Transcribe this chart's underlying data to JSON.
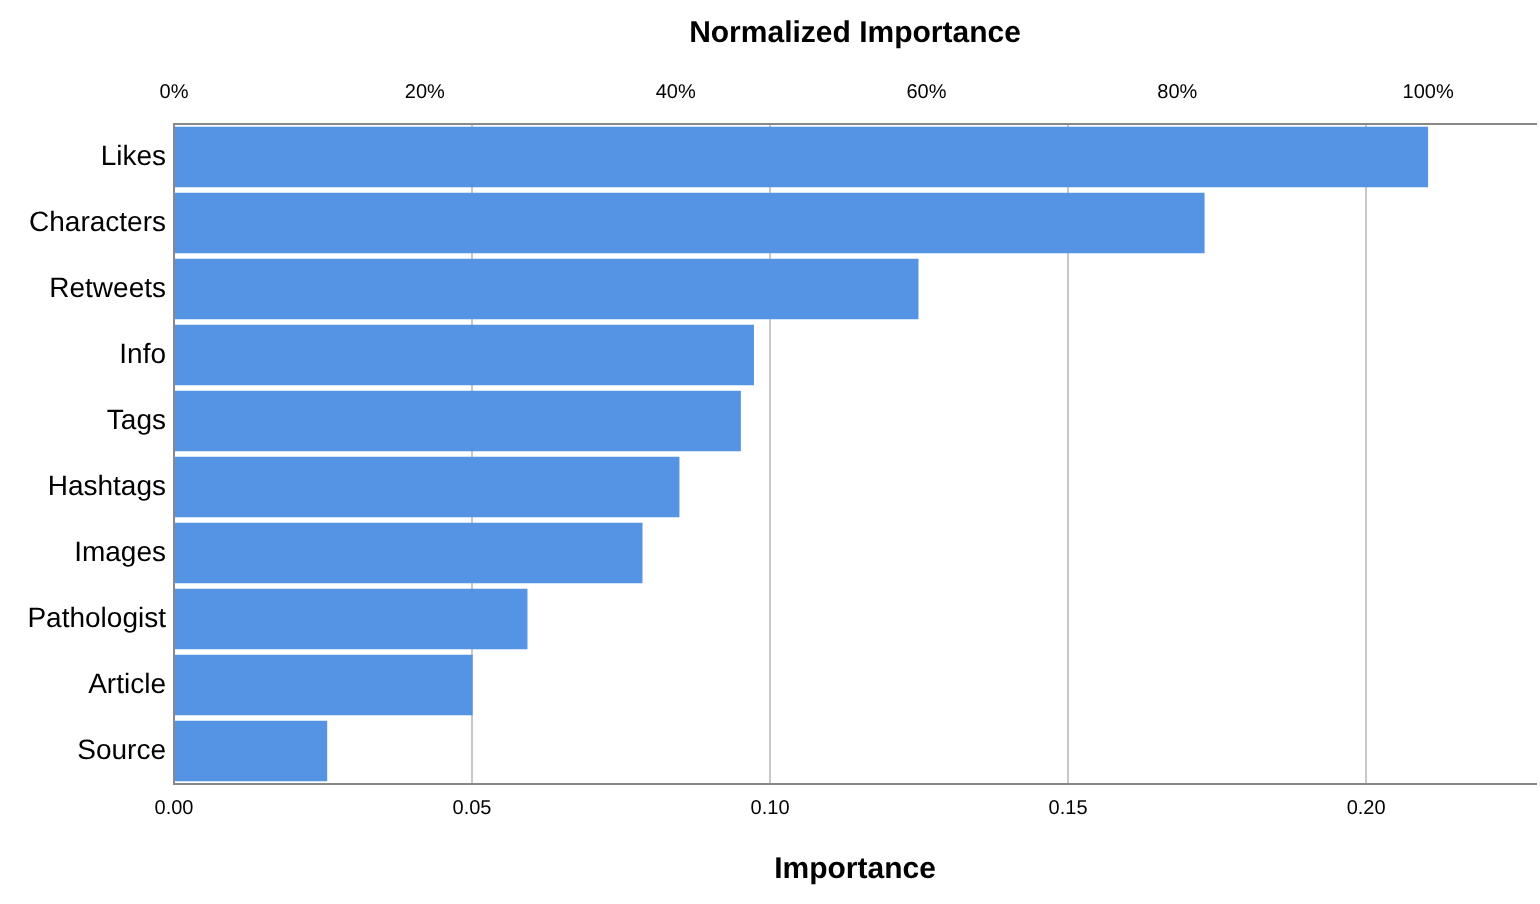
{
  "chart_data": {
    "type": "bar",
    "orientation": "horizontal",
    "xlabel": "Importance",
    "x2label": "Normalized Importance",
    "categories": [
      "Likes",
      "Characters",
      "Retweets",
      "Info",
      "Tags",
      "Hashtags",
      "Images",
      "Pathologist",
      "Article",
      "Source"
    ],
    "values": [
      0.2104,
      0.1729,
      0.1249,
      0.0973,
      0.0951,
      0.0848,
      0.0786,
      0.0593,
      0.0501,
      0.0257
    ],
    "color": "#5594e5",
    "xlim": [
      0,
      0.2285
    ],
    "xticks": [
      {
        "value": 0,
        "label": "0.00"
      },
      {
        "value": 0.05,
        "label": "0.05"
      },
      {
        "value": 0.1,
        "label": "0.10"
      },
      {
        "value": 0.15,
        "label": "0.15"
      },
      {
        "value": 0.2,
        "label": "0.20"
      }
    ],
    "x2lim": [
      0,
      108.6
    ],
    "x2ticks": [
      {
        "value": 0,
        "label": "0%"
      },
      {
        "value": 20,
        "label": "20%"
      },
      {
        "value": 40,
        "label": "40%"
      },
      {
        "value": 60,
        "label": "60%"
      },
      {
        "value": 80,
        "label": "80%"
      },
      {
        "value": 100,
        "label": "100%"
      }
    ],
    "grid": "x",
    "legend": false
  }
}
